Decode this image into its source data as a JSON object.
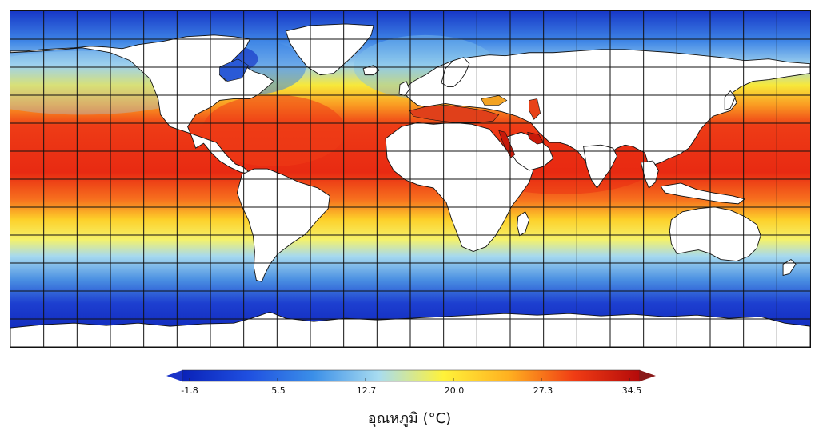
{
  "colorbar": {
    "title": "อุณหภูมิ (°C)",
    "ticks": [
      "-1.8",
      "5.5",
      "12.7",
      "20.0",
      "27.3",
      "34.5"
    ],
    "min": -1.8,
    "max": 34.5,
    "colors": [
      "#0a22b8",
      "#1f4fe0",
      "#3b8fe8",
      "#a8dcf0",
      "#fff23a",
      "#ffb020",
      "#f03c14",
      "#b40a0a"
    ]
  },
  "map": {
    "land_color": "#ffffff",
    "grid_color": "#111111",
    "coast_color": "#111111"
  }
}
